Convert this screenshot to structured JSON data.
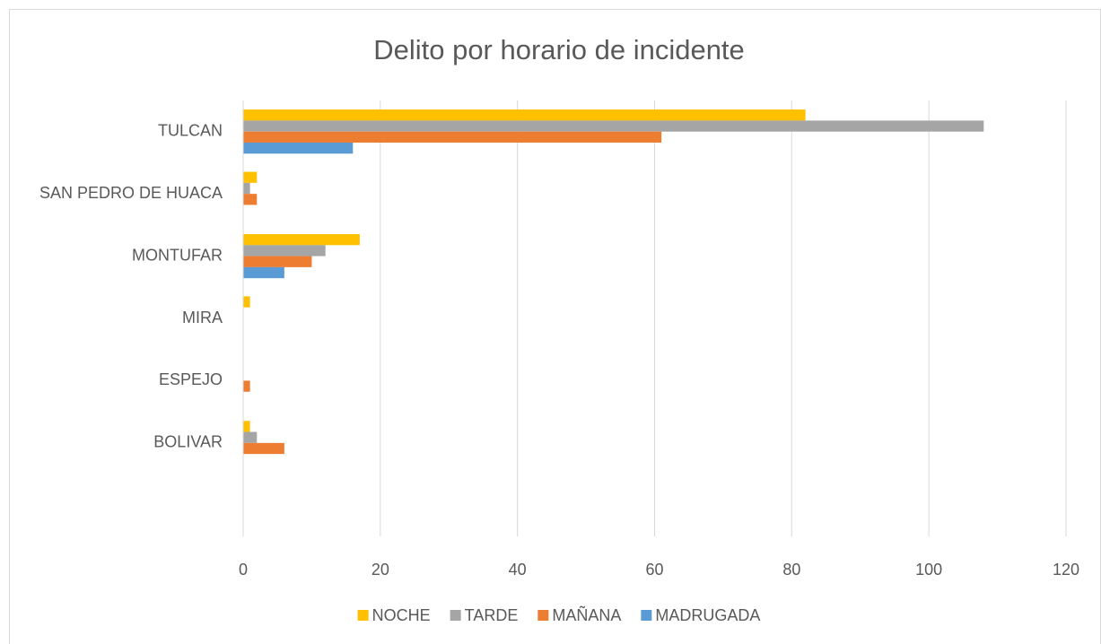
{
  "chart_data": {
    "type": "bar",
    "orientation": "horizontal",
    "title": "Delito por horario de incidente",
    "categories": [
      "TULCAN",
      "SAN PEDRO DE HUACA",
      "MONTUFAR",
      "MIRA",
      "ESPEJO",
      "BOLIVAR",
      null
    ],
    "series": [
      {
        "name": "NOCHE",
        "color": "#ffc000",
        "values": [
          82,
          2,
          17,
          1,
          0,
          1,
          null
        ]
      },
      {
        "name": "TARDE",
        "color": "#a5a5a5",
        "values": [
          108,
          1,
          12,
          0,
          0,
          2,
          null
        ]
      },
      {
        "name": "MAÑANA",
        "color": "#ed7d31",
        "values": [
          61,
          2,
          10,
          0,
          1,
          6,
          null
        ]
      },
      {
        "name": "MADRUGADA",
        "color": "#5b9bd5",
        "values": [
          16,
          0,
          6,
          0,
          0,
          0,
          null
        ]
      }
    ],
    "xlim": [
      0,
      120
    ],
    "xticks": [
      0,
      20,
      40,
      60,
      80,
      100,
      120
    ],
    "grid": true,
    "legend": "bottom"
  }
}
